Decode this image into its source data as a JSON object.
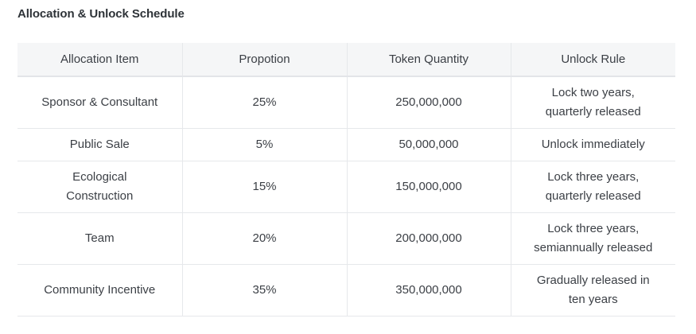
{
  "title": "Allocation & Unlock Schedule",
  "table": {
    "headers": [
      "Allocation Item",
      "Propotion",
      "Token Quantity",
      "Unlock Rule"
    ],
    "rows": [
      {
        "item": [
          "Sponsor & Consultant"
        ],
        "proportion": "25%",
        "quantity": "250,000,000",
        "rule": [
          "Lock two years,",
          "quarterly released"
        ]
      },
      {
        "item": [
          "Public Sale"
        ],
        "proportion": "5%",
        "quantity": "50,000,000",
        "rule": [
          "Unlock immediately"
        ]
      },
      {
        "item": [
          "Ecological",
          "Construction"
        ],
        "proportion": "15%",
        "quantity": "150,000,000",
        "rule": [
          "Lock three years,",
          "quarterly released"
        ]
      },
      {
        "item": [
          "Team"
        ],
        "proportion": "20%",
        "quantity": "200,000,000",
        "rule": [
          "Lock three years,",
          "semiannually released"
        ]
      },
      {
        "item": [
          "Community Incentive"
        ],
        "proportion": "35%",
        "quantity": "350,000,000",
        "rule": [
          "Gradually released in",
          "ten years"
        ]
      }
    ]
  }
}
